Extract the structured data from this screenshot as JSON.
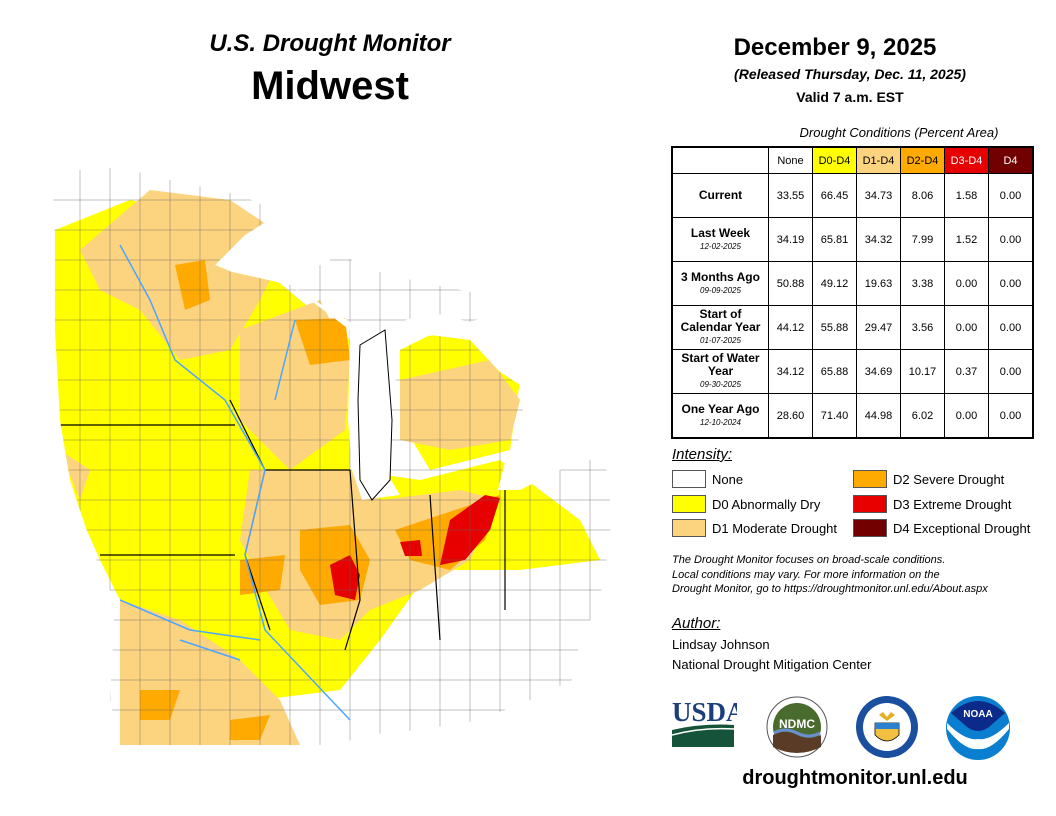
{
  "header": {
    "subtitle": "U.S. Drought Monitor",
    "region": "Midwest",
    "date": "December 9, 2025",
    "released": "(Released Thursday, Dec. 11, 2025)",
    "valid": "Valid 7 a.m. EST"
  },
  "table": {
    "caption": "Drought Conditions (Percent Area)",
    "columns": [
      "None",
      "D0-D4",
      "D1-D4",
      "D2-D4",
      "D3-D4",
      "D4"
    ],
    "column_colors": [
      "#ffffff",
      "#ffff00",
      "#fcd37f",
      "#ffaa00",
      "#e60000",
      "#730000"
    ],
    "rows": [
      {
        "label": "Current",
        "date": "",
        "values": [
          "33.55",
          "66.45",
          "34.73",
          "8.06",
          "1.58",
          "0.00"
        ]
      },
      {
        "label": "Last Week",
        "date": "12-02-2025",
        "values": [
          "34.19",
          "65.81",
          "34.32",
          "7.99",
          "1.52",
          "0.00"
        ]
      },
      {
        "label": "3 Months Ago",
        "date": "09-09-2025",
        "values": [
          "50.88",
          "49.12",
          "19.63",
          "3.38",
          "0.00",
          "0.00"
        ]
      },
      {
        "label": "Start of Calendar Year",
        "date": "01-07-2025",
        "values": [
          "44.12",
          "55.88",
          "29.47",
          "3.56",
          "0.00",
          "0.00"
        ]
      },
      {
        "label": "Start of Water Year",
        "date": "09-30-2025",
        "values": [
          "34.12",
          "65.88",
          "34.69",
          "10.17",
          "0.37",
          "0.00"
        ]
      },
      {
        "label": "One Year Ago",
        "date": "12-10-2024",
        "values": [
          "28.60",
          "71.40",
          "44.98",
          "6.02",
          "0.00",
          "0.00"
        ]
      }
    ]
  },
  "legend": {
    "title": "Intensity:",
    "items": [
      {
        "label": "None",
        "color": "#ffffff"
      },
      {
        "label": "D0 Abnormally Dry",
        "color": "#ffff00"
      },
      {
        "label": "D1 Moderate Drought",
        "color": "#fcd37f"
      },
      {
        "label": "D2 Severe Drought",
        "color": "#ffaa00"
      },
      {
        "label": "D3 Extreme Drought",
        "color": "#e60000"
      },
      {
        "label": "D4 Exceptional Drought",
        "color": "#730000"
      }
    ]
  },
  "note": [
    "The Drought Monitor focuses on broad-scale conditions.",
    "Local conditions may vary. For more information on the",
    "Drought Monitor, go to https://droughtmonitor.unl.edu/About.aspx"
  ],
  "author": {
    "label": "Author:",
    "name": "Lindsay Johnson",
    "org": "National Drought Mitigation Center"
  },
  "logos": {
    "usda": "USDA",
    "ndmc": "NDMC",
    "commerce": "Department of Commerce seal",
    "noaa": "NOAA"
  },
  "website": "droughtmonitor.unl.edu",
  "map": {
    "water_color": "#4da6ff"
  }
}
